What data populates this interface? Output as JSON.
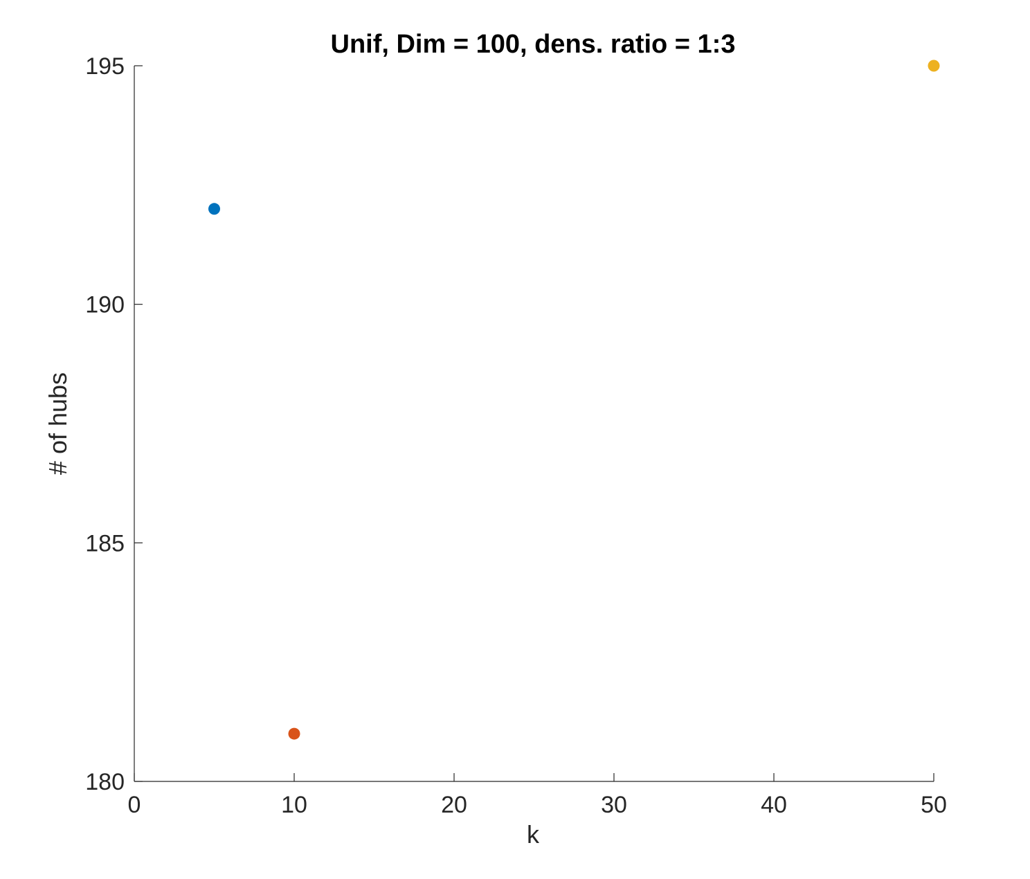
{
  "chart_data": {
    "type": "scatter",
    "title": "Unif, Dim = 100, dens. ratio = 1:3",
    "xlabel": "k",
    "ylabel": "# of hubs",
    "xlim": [
      0,
      50
    ],
    "ylim": [
      180,
      195
    ],
    "xticks": [
      0,
      10,
      20,
      30,
      40,
      50
    ],
    "yticks": [
      180,
      185,
      190,
      195
    ],
    "grid": false,
    "series": [
      {
        "x": [
          5
        ],
        "y": [
          192
        ],
        "color": "#0072BD"
      },
      {
        "x": [
          10
        ],
        "y": [
          181
        ],
        "color": "#D95319"
      },
      {
        "x": [
          50
        ],
        "y": [
          195
        ],
        "color": "#EDB120"
      }
    ]
  }
}
